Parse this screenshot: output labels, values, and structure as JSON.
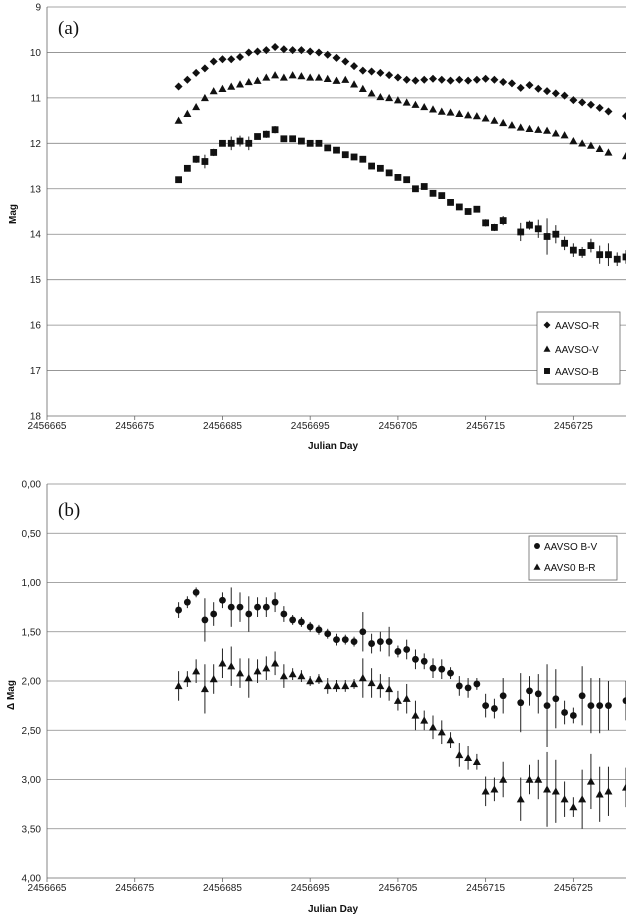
{
  "chart_data": [
    {
      "type": "scatter",
      "panel_label": "(a)",
      "xlabel": "Julian Day",
      "ylabel": "Mag",
      "xlim": [
        2456665,
        2456731
      ],
      "ylim": [
        9,
        18
      ],
      "y_inverted": true,
      "xticks": [
        2456665,
        2456675,
        2456685,
        2456695,
        2456705,
        2456715,
        2456725
      ],
      "yticks": [
        9,
        10,
        11,
        12,
        13,
        14,
        15,
        16,
        17,
        18
      ],
      "grid": "horizontal",
      "legend_position": "lower-right",
      "series": [
        {
          "name": "AAVSO-R",
          "marker": "diamond",
          "x": [
            2456680,
            2456681,
            2456682,
            2456683,
            2456684,
            2456685,
            2456686,
            2456687,
            2456688,
            2456689,
            2456690,
            2456691,
            2456692,
            2456693,
            2456694,
            2456695,
            2456696,
            2456697,
            2456698,
            2456699,
            2456700,
            2456701,
            2456702,
            2456703,
            2456704,
            2456705,
            2456706,
            2456707,
            2456708,
            2456709,
            2456710,
            2456711,
            2456712,
            2456713,
            2456714,
            2456715,
            2456716,
            2456717,
            2456718,
            2456719,
            2456720,
            2456721,
            2456722,
            2456723,
            2456724,
            2456725,
            2456726,
            2456727,
            2456728,
            2456729,
            2456731
          ],
          "y": [
            10.75,
            10.6,
            10.45,
            10.35,
            10.2,
            10.15,
            10.15,
            10.1,
            10.0,
            9.98,
            9.95,
            9.88,
            9.93,
            9.95,
            9.95,
            9.98,
            10.0,
            10.05,
            10.12,
            10.2,
            10.3,
            10.4,
            10.42,
            10.45,
            10.5,
            10.55,
            10.6,
            10.62,
            10.6,
            10.58,
            10.6,
            10.62,
            10.6,
            10.62,
            10.6,
            10.58,
            10.6,
            10.65,
            10.68,
            10.78,
            10.72,
            10.8,
            10.85,
            10.9,
            10.95,
            11.05,
            11.1,
            11.15,
            11.22,
            11.3,
            11.4
          ]
        },
        {
          "name": "AAVSO-V",
          "marker": "triangle",
          "x": [
            2456680,
            2456681,
            2456682,
            2456683,
            2456684,
            2456685,
            2456686,
            2456687,
            2456688,
            2456689,
            2456690,
            2456691,
            2456692,
            2456693,
            2456694,
            2456695,
            2456696,
            2456697,
            2456698,
            2456699,
            2456700,
            2456701,
            2456702,
            2456703,
            2456704,
            2456705,
            2456706,
            2456707,
            2456708,
            2456709,
            2456710,
            2456711,
            2456712,
            2456713,
            2456714,
            2456715,
            2456716,
            2456717,
            2456718,
            2456719,
            2456720,
            2456721,
            2456722,
            2456723,
            2456724,
            2456725,
            2456726,
            2456727,
            2456728,
            2456729,
            2456731
          ],
          "y": [
            11.5,
            11.35,
            11.2,
            11.0,
            10.85,
            10.8,
            10.75,
            10.7,
            10.65,
            10.62,
            10.55,
            10.5,
            10.55,
            10.5,
            10.52,
            10.55,
            10.55,
            10.58,
            10.62,
            10.6,
            10.7,
            10.8,
            10.9,
            10.98,
            11.0,
            11.05,
            11.1,
            11.15,
            11.2,
            11.25,
            11.3,
            11.32,
            11.35,
            11.38,
            11.4,
            11.45,
            11.5,
            11.55,
            11.6,
            11.65,
            11.68,
            11.7,
            11.72,
            11.78,
            11.82,
            11.95,
            12.0,
            12.05,
            12.12,
            12.2,
            12.28
          ]
        },
        {
          "name": "AAVSO-B",
          "marker": "square",
          "x": [
            2456680,
            2456681,
            2456682,
            2456683,
            2456684,
            2456685,
            2456686,
            2456687,
            2456688,
            2456689,
            2456690,
            2456691,
            2456692,
            2456693,
            2456694,
            2456695,
            2456696,
            2456697,
            2456698,
            2456699,
            2456700,
            2456701,
            2456702,
            2456703,
            2456704,
            2456705,
            2456706,
            2456707,
            2456708,
            2456709,
            2456710,
            2456711,
            2456712,
            2456713,
            2456714,
            2456715,
            2456716,
            2456717,
            2456719,
            2456720,
            2456721,
            2456722,
            2456723,
            2456724,
            2456725,
            2456726,
            2456727,
            2456728,
            2456729,
            2456730,
            2456731
          ],
          "y": [
            12.8,
            12.55,
            12.35,
            12.4,
            12.2,
            12.0,
            12.0,
            11.95,
            12.0,
            11.85,
            11.8,
            11.7,
            11.9,
            11.9,
            11.95,
            12.0,
            12.0,
            12.1,
            12.15,
            12.25,
            12.3,
            12.35,
            12.5,
            12.55,
            12.65,
            12.75,
            12.8,
            13.0,
            12.95,
            13.1,
            13.15,
            13.3,
            13.4,
            13.5,
            13.45,
            13.75,
            13.85,
            13.7,
            13.95,
            13.8,
            13.88,
            14.05,
            14.0,
            14.2,
            14.35,
            14.4,
            14.25,
            14.45,
            14.45,
            14.55,
            14.5
          ],
          "yerr": [
            0.05,
            0.05,
            0.08,
            0.15,
            0.08,
            0.06,
            0.15,
            0.12,
            0.15,
            0.06,
            0.08,
            0.08,
            0.06,
            0.05,
            0.05,
            0.05,
            0.05,
            0.05,
            0.05,
            0.05,
            0.06,
            0.06,
            0.05,
            0.05,
            0.06,
            0.06,
            0.06,
            0.06,
            0.05,
            0.06,
            0.06,
            0.06,
            0.06,
            0.06,
            0.06,
            0.08,
            0.08,
            0.1,
            0.2,
            0.1,
            0.2,
            0.4,
            0.2,
            0.15,
            0.15,
            0.12,
            0.15,
            0.2,
            0.25,
            0.15,
            0.15
          ]
        }
      ]
    },
    {
      "type": "scatter",
      "panel_label": "(b)",
      "xlabel": "Julian Day",
      "ylabel": "Δ Mag",
      "xlim": [
        2456665,
        2456731
      ],
      "ylim": [
        0,
        4
      ],
      "y_inverted": true,
      "xticks": [
        2456665,
        2456675,
        2456685,
        2456695,
        2456705,
        2456715,
        2456725
      ],
      "ytick_labels": [
        "0,00",
        "0,50",
        "1,00",
        "1,50",
        "2,00",
        "2,50",
        "3,00",
        "3,50",
        "4,00"
      ],
      "grid": "horizontal",
      "legend_position": "upper-right",
      "series": [
        {
          "name": "AAVSO B-V",
          "marker": "circle",
          "x": [
            2456680,
            2456681,
            2456682,
            2456683,
            2456684,
            2456685,
            2456686,
            2456687,
            2456688,
            2456689,
            2456690,
            2456691,
            2456692,
            2456693,
            2456694,
            2456695,
            2456696,
            2456697,
            2456698,
            2456699,
            2456700,
            2456701,
            2456702,
            2456703,
            2456704,
            2456705,
            2456706,
            2456707,
            2456708,
            2456709,
            2456710,
            2456711,
            2456712,
            2456713,
            2456714,
            2456715,
            2456716,
            2456717,
            2456719,
            2456720,
            2456721,
            2456722,
            2456723,
            2456724,
            2456725,
            2456726,
            2456727,
            2456728,
            2456729,
            2456731
          ],
          "y": [
            1.28,
            1.2,
            1.1,
            1.38,
            1.32,
            1.18,
            1.25,
            1.25,
            1.32,
            1.25,
            1.25,
            1.2,
            1.32,
            1.38,
            1.4,
            1.45,
            1.48,
            1.52,
            1.58,
            1.58,
            1.6,
            1.5,
            1.62,
            1.6,
            1.6,
            1.7,
            1.68,
            1.78,
            1.8,
            1.87,
            1.88,
            1.92,
            2.05,
            2.07,
            2.03,
            2.25,
            2.28,
            2.15,
            2.22,
            2.1,
            2.13,
            2.25,
            2.18,
            2.32,
            2.35,
            2.15,
            2.25,
            2.25,
            2.25,
            2.2
          ],
          "yerr": [
            0.08,
            0.06,
            0.05,
            0.22,
            0.12,
            0.08,
            0.2,
            0.15,
            0.18,
            0.1,
            0.1,
            0.1,
            0.08,
            0.05,
            0.05,
            0.05,
            0.05,
            0.05,
            0.06,
            0.05,
            0.05,
            0.2,
            0.1,
            0.1,
            0.15,
            0.06,
            0.1,
            0.1,
            0.08,
            0.1,
            0.1,
            0.06,
            0.1,
            0.1,
            0.06,
            0.12,
            0.1,
            0.18,
            0.3,
            0.15,
            0.2,
            0.42,
            0.3,
            0.12,
            0.08,
            0.3,
            0.28,
            0.28,
            0.25,
            0.2
          ]
        },
        {
          "name": "AAVS0 B-R",
          "marker": "triangle",
          "x": [
            2456680,
            2456681,
            2456682,
            2456683,
            2456684,
            2456685,
            2456686,
            2456687,
            2456688,
            2456689,
            2456690,
            2456691,
            2456692,
            2456693,
            2456694,
            2456695,
            2456696,
            2456697,
            2456698,
            2456699,
            2456700,
            2456701,
            2456702,
            2456703,
            2456704,
            2456705,
            2456706,
            2456707,
            2456708,
            2456709,
            2456710,
            2456711,
            2456712,
            2456713,
            2456714,
            2456715,
            2456716,
            2456717,
            2456719,
            2456720,
            2456721,
            2456722,
            2456723,
            2456724,
            2456725,
            2456726,
            2456727,
            2456728,
            2456729,
            2456731
          ],
          "y": [
            2.05,
            1.98,
            1.9,
            2.08,
            1.98,
            1.82,
            1.85,
            1.92,
            1.97,
            1.9,
            1.87,
            1.82,
            1.95,
            1.93,
            1.95,
            2.0,
            1.98,
            2.05,
            2.05,
            2.05,
            2.03,
            1.97,
            2.02,
            2.05,
            2.08,
            2.2,
            2.18,
            2.35,
            2.4,
            2.47,
            2.52,
            2.6,
            2.75,
            2.78,
            2.82,
            3.12,
            3.1,
            3.0,
            3.2,
            3.0,
            3.0,
            3.1,
            3.12,
            3.2,
            3.28,
            3.2,
            3.02,
            3.15,
            3.12,
            3.08
          ],
          "yerr": [
            0.15,
            0.08,
            0.12,
            0.25,
            0.15,
            0.15,
            0.2,
            0.15,
            0.2,
            0.12,
            0.12,
            0.12,
            0.12,
            0.06,
            0.06,
            0.05,
            0.05,
            0.08,
            0.06,
            0.06,
            0.05,
            0.2,
            0.15,
            0.12,
            0.12,
            0.1,
            0.15,
            0.15,
            0.1,
            0.12,
            0.12,
            0.08,
            0.12,
            0.12,
            0.08,
            0.15,
            0.12,
            0.18,
            0.22,
            0.15,
            0.2,
            0.38,
            0.32,
            0.18,
            0.1,
            0.3,
            0.28,
            0.28,
            0.25,
            0.2
          ]
        }
      ]
    }
  ]
}
